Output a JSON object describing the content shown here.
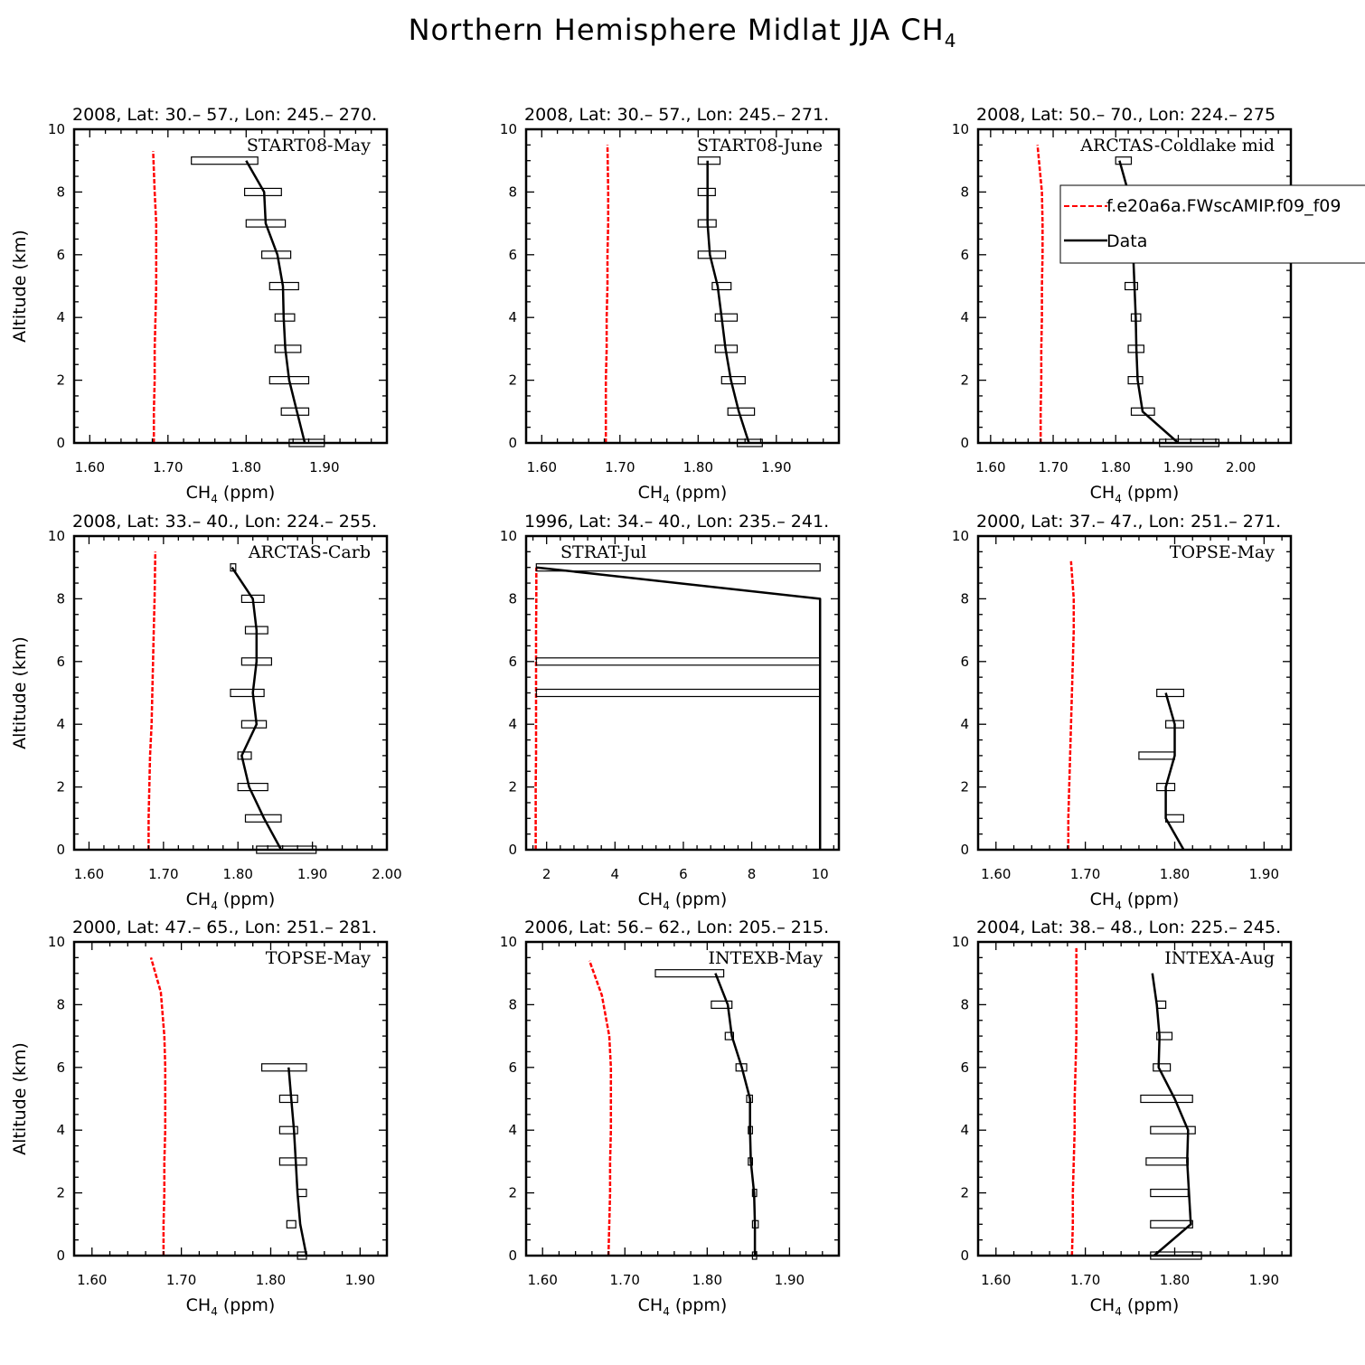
{
  "figure": {
    "title_main": "Northern Hemisphere Midlat JJA CH",
    "title_sub": "4"
  },
  "legend": {
    "model": "f.e20a6a.FWscAMIP.f09_f09",
    "data": "Data"
  },
  "colors": {
    "model": "#ff0000",
    "data": "#000000"
  },
  "chart_data": [
    {
      "type": "line",
      "title": "2008, Lat:  30.– 57., Lon: 245.– 270.",
      "annotation": "START08-May",
      "xlabel": "CH4 (ppm)",
      "ylabel": "Altitude (km)",
      "xlim": [
        1.58,
        1.98
      ],
      "ylim": [
        0,
        10
      ],
      "xticks": [
        1.6,
        1.7,
        1.8,
        1.9
      ],
      "xticklabels": [
        "1.60",
        "1.70",
        "1.80",
        "1.90"
      ],
      "yticks": [
        0,
        2,
        4,
        6,
        8,
        10
      ],
      "yticklabels": [
        "0",
        "2",
        "4",
        "6",
        "8",
        "10"
      ],
      "model": {
        "x": [
          1.682,
          1.682,
          1.683,
          1.683,
          1.684,
          1.685,
          1.685,
          1.685,
          1.683,
          1.681
        ],
        "y": [
          0,
          1,
          2,
          3,
          4,
          5,
          6,
          7,
          8,
          9.3
        ]
      },
      "data": {
        "x": [
          1.875,
          1.865,
          1.855,
          1.85,
          1.848,
          1.847,
          1.84,
          1.825,
          1.823,
          1.8
        ],
        "y": [
          0,
          1,
          2,
          3,
          4,
          5,
          6,
          7,
          8,
          9
        ]
      },
      "boxes": [
        {
          "y": 0,
          "lo": 1.855,
          "hi": 1.9
        },
        {
          "y": 1,
          "lo": 1.845,
          "hi": 1.88
        },
        {
          "y": 2,
          "lo": 1.83,
          "hi": 1.88
        },
        {
          "y": 3,
          "lo": 1.837,
          "hi": 1.87
        },
        {
          "y": 4,
          "lo": 1.837,
          "hi": 1.862
        },
        {
          "y": 5,
          "lo": 1.83,
          "hi": 1.867
        },
        {
          "y": 6,
          "lo": 1.82,
          "hi": 1.857
        },
        {
          "y": 7,
          "lo": 1.8,
          "hi": 1.85
        },
        {
          "y": 8,
          "lo": 1.798,
          "hi": 1.845
        },
        {
          "y": 9,
          "lo": 1.73,
          "hi": 1.815
        }
      ]
    },
    {
      "type": "line",
      "title": "2008, Lat:  30.– 57., Lon: 245.– 271.",
      "annotation": "START08-June",
      "xlabel": "CH4 (ppm)",
      "ylabel": "",
      "xlim": [
        1.58,
        1.98
      ],
      "ylim": [
        0,
        10
      ],
      "xticks": [
        1.6,
        1.7,
        1.8,
        1.9
      ],
      "xticklabels": [
        "1.60",
        "1.70",
        "1.80",
        "1.90"
      ],
      "yticks": [
        0,
        2,
        4,
        6,
        8,
        10
      ],
      "yticklabels": [
        "0",
        "2",
        "4",
        "6",
        "8",
        "10"
      ],
      "model": {
        "x": [
          1.682,
          1.682,
          1.682,
          1.683,
          1.683,
          1.684,
          1.684,
          1.685,
          1.685,
          1.684
        ],
        "y": [
          0,
          1,
          2,
          3,
          4,
          5,
          6,
          7,
          8,
          9.5
        ]
      },
      "data": {
        "x": [
          1.865,
          1.852,
          1.842,
          1.835,
          1.83,
          1.825,
          1.815,
          1.812,
          1.812,
          1.812
        ],
        "y": [
          0,
          1,
          2,
          3,
          4,
          5,
          6,
          7,
          8,
          9
        ]
      },
      "boxes": [
        {
          "y": 0,
          "lo": 1.85,
          "hi": 1.882
        },
        {
          "y": 1,
          "lo": 1.838,
          "hi": 1.872
        },
        {
          "y": 2,
          "lo": 1.83,
          "hi": 1.86
        },
        {
          "y": 3,
          "lo": 1.822,
          "hi": 1.85
        },
        {
          "y": 4,
          "lo": 1.822,
          "hi": 1.85
        },
        {
          "y": 5,
          "lo": 1.818,
          "hi": 1.842
        },
        {
          "y": 6,
          "lo": 1.8,
          "hi": 1.835
        },
        {
          "y": 7,
          "lo": 1.8,
          "hi": 1.823
        },
        {
          "y": 8,
          "lo": 1.8,
          "hi": 1.822
        },
        {
          "y": 9,
          "lo": 1.8,
          "hi": 1.828
        }
      ]
    },
    {
      "type": "line",
      "title": "2008, Lat:  50.– 70., Lon: 224.– 275",
      "annotation": "ARCTAS-Coldlake mid",
      "xlabel": "CH4 (ppm)",
      "ylabel": "",
      "xlim": [
        1.58,
        2.08
      ],
      "ylim": [
        0,
        10
      ],
      "xticks": [
        1.6,
        1.7,
        1.8,
        1.9,
        2.0
      ],
      "xticklabels": [
        "1.60",
        "1.70",
        "1.80",
        "1.90",
        "2.00"
      ],
      "yticks": [
        0,
        2,
        4,
        6,
        8,
        10
      ],
      "yticklabels": [
        "0",
        "2",
        "4",
        "6",
        "8",
        "10"
      ],
      "model": {
        "x": [
          1.68,
          1.68,
          1.681,
          1.681,
          1.682,
          1.682,
          1.683,
          1.683,
          1.682,
          1.675
        ],
        "y": [
          0,
          1,
          2,
          3,
          4,
          5,
          6,
          7,
          8,
          9.5
        ]
      },
      "data": {
        "x": [
          1.9,
          1.843,
          1.835,
          1.833,
          1.832,
          1.83,
          1.828,
          1.825,
          1.82,
          1.806
        ],
        "y": [
          0,
          1,
          2,
          3,
          4,
          5,
          6,
          7,
          8,
          9
        ]
      },
      "boxes": [
        {
          "y": 0,
          "lo": 1.87,
          "hi": 1.965
        },
        {
          "y": 1,
          "lo": 1.825,
          "hi": 1.862
        },
        {
          "y": 2,
          "lo": 1.82,
          "hi": 1.843
        },
        {
          "y": 3,
          "lo": 1.82,
          "hi": 1.845
        },
        {
          "y": 4,
          "lo": 1.825,
          "hi": 1.84
        },
        {
          "y": 5,
          "lo": 1.815,
          "hi": 1.835
        },
        {
          "y": 6,
          "lo": 1.815,
          "hi": 1.84
        },
        {
          "y": 7,
          "lo": 1.82,
          "hi": 1.84
        },
        {
          "y": 8,
          "lo": 1.8,
          "hi": 1.83
        },
        {
          "y": 9,
          "lo": 1.8,
          "hi": 1.825
        }
      ]
    },
    {
      "type": "line",
      "title": "2008, Lat:  33.– 40., Lon: 224.– 255.",
      "annotation": "ARCTAS-Carb",
      "xlabel": "CH4 (ppm)",
      "ylabel": "Altitude (km)",
      "xlim": [
        1.58,
        2.0
      ],
      "ylim": [
        0,
        10
      ],
      "xticks": [
        1.6,
        1.7,
        1.8,
        1.9,
        2.0
      ],
      "xticklabels": [
        "1.60",
        "1.70",
        "1.80",
        "1.90",
        "2.00"
      ],
      "yticks": [
        0,
        2,
        4,
        6,
        8,
        10
      ],
      "yticklabels": [
        "0",
        "2",
        "4",
        "6",
        "8",
        "10"
      ],
      "model": {
        "x": [
          1.68,
          1.68,
          1.681,
          1.682,
          1.684,
          1.685,
          1.686,
          1.687,
          1.688,
          1.689
        ],
        "y": [
          0,
          1,
          2,
          3,
          4,
          5,
          6,
          7,
          8,
          9.5
        ]
      },
      "data": {
        "x": [
          1.858,
          1.835,
          1.815,
          1.805,
          1.825,
          1.82,
          1.825,
          1.825,
          1.82,
          1.792
        ],
        "y": [
          0,
          1,
          2,
          3,
          4,
          5,
          6,
          7,
          8,
          9
        ]
      },
      "boxes": [
        {
          "y": 0,
          "lo": 1.825,
          "hi": 1.905
        },
        {
          "y": 1,
          "lo": 1.81,
          "hi": 1.858
        },
        {
          "y": 2,
          "lo": 1.8,
          "hi": 1.84
        },
        {
          "y": 3,
          "lo": 1.8,
          "hi": 1.818
        },
        {
          "y": 4,
          "lo": 1.805,
          "hi": 1.838
        },
        {
          "y": 5,
          "lo": 1.79,
          "hi": 1.835
        },
        {
          "y": 6,
          "lo": 1.805,
          "hi": 1.845
        },
        {
          "y": 7,
          "lo": 1.81,
          "hi": 1.84
        },
        {
          "y": 8,
          "lo": 1.805,
          "hi": 1.835
        },
        {
          "y": 9,
          "lo": 1.79,
          "hi": 1.797
        }
      ]
    },
    {
      "type": "line",
      "title": "1996, Lat: 34.– 40., Lon: 235.– 241.",
      "annotation": "STRAT-Jul",
      "xlabel": "CH4 (ppm)",
      "ylabel": "",
      "xlim": [
        1.4,
        10.55
      ],
      "ylim": [
        0,
        10
      ],
      "xticks": [
        2,
        4,
        6,
        8,
        10
      ],
      "xticklabels": [
        "2",
        "4",
        "6",
        "8",
        "10"
      ],
      "yticks": [
        0,
        2,
        4,
        6,
        8,
        10
      ],
      "yticklabels": [
        "0",
        "2",
        "4",
        "6",
        "8",
        "10"
      ],
      "model": {
        "x": [
          1.68,
          1.68,
          1.68,
          1.69,
          1.69,
          1.69,
          1.69,
          1.69,
          1.7,
          1.7
        ],
        "y": [
          0,
          1,
          2,
          3,
          4,
          5,
          6,
          7,
          8,
          9
        ]
      },
      "data": {
        "x": [
          10,
          10,
          10,
          10,
          1.7
        ],
        "y": [
          0,
          5,
          6,
          8,
          9
        ]
      },
      "boxes": [
        {
          "y": 5,
          "lo": 1.7,
          "hi": 10
        },
        {
          "y": 6,
          "lo": 1.7,
          "hi": 10
        },
        {
          "y": 9,
          "lo": 1.7,
          "hi": 10
        }
      ]
    },
    {
      "type": "line",
      "title": "2000, Lat: 37.– 47., Lon: 251.– 271.",
      "annotation": "TOPSE-May",
      "xlabel": "CH4 (ppm)",
      "ylabel": "",
      "xlim": [
        1.58,
        1.93
      ],
      "ylim": [
        0,
        10
      ],
      "xticks": [
        1.6,
        1.7,
        1.8,
        1.9
      ],
      "xticklabels": [
        "1.60",
        "1.70",
        "1.80",
        "1.90"
      ],
      "yticks": [
        0,
        2,
        4,
        6,
        8,
        10
      ],
      "yticklabels": [
        "0",
        "2",
        "4",
        "6",
        "8",
        "10"
      ],
      "model": {
        "x": [
          1.681,
          1.681,
          1.682,
          1.683,
          1.684,
          1.685,
          1.686,
          1.687,
          1.687,
          1.684
        ],
        "y": [
          0,
          1,
          2,
          3,
          4,
          5,
          6,
          7,
          8,
          9.2
        ]
      },
      "data": {
        "x": [
          1.81,
          1.79,
          1.79,
          1.8,
          1.8,
          1.79
        ],
        "y": [
          0,
          1,
          2,
          3,
          4,
          5
        ]
      },
      "boxes": [
        {
          "y": 1,
          "lo": 1.79,
          "hi": 1.81
        },
        {
          "y": 2,
          "lo": 1.78,
          "hi": 1.8
        },
        {
          "y": 3,
          "lo": 1.76,
          "hi": 1.8
        },
        {
          "y": 4,
          "lo": 1.79,
          "hi": 1.81
        },
        {
          "y": 5,
          "lo": 1.78,
          "hi": 1.81
        }
      ]
    },
    {
      "type": "line",
      "title": "2000, Lat: 47.– 65., Lon: 251.– 281.",
      "annotation": "TOPSE-May",
      "xlabel": "CH4 (ppm)",
      "ylabel": "Altitude (km)",
      "xlim": [
        1.58,
        1.93
      ],
      "ylim": [
        0,
        10
      ],
      "xticks": [
        1.6,
        1.7,
        1.8,
        1.9
      ],
      "xticklabels": [
        "1.60",
        "1.70",
        "1.80",
        "1.90"
      ],
      "yticks": [
        0,
        2,
        4,
        6,
        8,
        10
      ],
      "yticklabels": [
        "0",
        "2",
        "4",
        "6",
        "8",
        "10"
      ],
      "model": {
        "x": [
          1.68,
          1.68,
          1.681,
          1.681,
          1.682,
          1.682,
          1.682,
          1.681,
          1.677,
          1.666
        ],
        "y": [
          0,
          1,
          2,
          3,
          4,
          5,
          6,
          7,
          8.4,
          9.5
        ]
      },
      "data": {
        "x": [
          1.84,
          1.833,
          1.83,
          1.828,
          1.826,
          1.823,
          1.82
        ],
        "y": [
          0,
          1,
          2,
          3,
          4,
          5,
          6
        ]
      },
      "boxes": [
        {
          "y": 0,
          "lo": 1.83,
          "hi": 1.84
        },
        {
          "y": 1,
          "lo": 1.818,
          "hi": 1.828
        },
        {
          "y": 2,
          "lo": 1.83,
          "hi": 1.84
        },
        {
          "y": 3,
          "lo": 1.81,
          "hi": 1.84
        },
        {
          "y": 4,
          "lo": 1.81,
          "hi": 1.83
        },
        {
          "y": 5,
          "lo": 1.81,
          "hi": 1.83
        },
        {
          "y": 6,
          "lo": 1.79,
          "hi": 1.84
        }
      ]
    },
    {
      "type": "line",
      "title": "2006, Lat: 56.– 62., Lon: 205.– 215.",
      "annotation": "INTEXB-May",
      "xlabel": "CH4 (ppm)",
      "ylabel": "",
      "xlim": [
        1.58,
        1.96
      ],
      "ylim": [
        0,
        10
      ],
      "xticks": [
        1.6,
        1.7,
        1.8,
        1.9
      ],
      "xticklabels": [
        "1.60",
        "1.70",
        "1.80",
        "1.90"
      ],
      "yticks": [
        0,
        2,
        4,
        6,
        8,
        10
      ],
      "yticklabels": [
        "0",
        "2",
        "4",
        "6",
        "8",
        "10"
      ],
      "model": {
        "x": [
          1.68,
          1.681,
          1.682,
          1.682,
          1.683,
          1.683,
          1.683,
          1.681,
          1.672,
          1.657
        ],
        "y": [
          0,
          1,
          2,
          3,
          4,
          5,
          6,
          7,
          8.3,
          9.4
        ]
      },
      "data": {
        "x": [
          1.858,
          1.858,
          1.857,
          1.853,
          1.852,
          1.852,
          1.842,
          1.83,
          1.825,
          1.81
        ],
        "y": [
          0,
          1,
          2,
          3,
          4,
          5,
          6,
          7,
          8,
          9
        ]
      },
      "boxes": [
        {
          "y": 0,
          "lo": 1.855,
          "hi": 1.86
        },
        {
          "y": 1,
          "lo": 1.855,
          "hi": 1.862
        },
        {
          "y": 2,
          "lo": 1.855,
          "hi": 1.86
        },
        {
          "y": 3,
          "lo": 1.85,
          "hi": 1.855
        },
        {
          "y": 4,
          "lo": 1.85,
          "hi": 1.855
        },
        {
          "y": 5,
          "lo": 1.848,
          "hi": 1.855
        },
        {
          "y": 6,
          "lo": 1.835,
          "hi": 1.848
        },
        {
          "y": 7,
          "lo": 1.822,
          "hi": 1.832
        },
        {
          "y": 8,
          "lo": 1.805,
          "hi": 1.83
        },
        {
          "y": 9,
          "lo": 1.737,
          "hi": 1.82
        }
      ]
    },
    {
      "type": "line",
      "title": "2004, Lat: 38.– 48., Lon: 225.– 245.",
      "annotation": "INTEXA-Aug",
      "xlabel": "CH4 (ppm)",
      "ylabel": "",
      "xlim": [
        1.58,
        1.93
      ],
      "ylim": [
        0,
        10
      ],
      "xticks": [
        1.6,
        1.7,
        1.8,
        1.9
      ],
      "xticklabels": [
        "1.60",
        "1.70",
        "1.80",
        "1.90"
      ],
      "yticks": [
        0,
        2,
        4,
        6,
        8,
        10
      ],
      "yticklabels": [
        "0",
        "2",
        "4",
        "6",
        "8",
        "10"
      ],
      "model": {
        "x": [
          1.685,
          1.686,
          1.686,
          1.687,
          1.688,
          1.688,
          1.689,
          1.69,
          1.69,
          1.69
        ],
        "y": [
          0,
          1,
          2,
          3,
          4,
          5,
          6,
          7,
          8,
          9.8
        ]
      },
      "data": {
        "x": [
          1.777,
          1.818,
          1.816,
          1.814,
          1.815,
          1.8,
          1.782,
          1.783,
          1.78,
          1.775
        ],
        "y": [
          0,
          1,
          2,
          3,
          4,
          5,
          6,
          7,
          8,
          9
        ]
      },
      "boxes": [
        {
          "y": 0,
          "lo": 1.773,
          "hi": 1.83
        },
        {
          "y": 1,
          "lo": 1.773,
          "hi": 1.82
        },
        {
          "y": 2,
          "lo": 1.773,
          "hi": 1.815
        },
        {
          "y": 3,
          "lo": 1.768,
          "hi": 1.815
        },
        {
          "y": 4,
          "lo": 1.773,
          "hi": 1.823
        },
        {
          "y": 5,
          "lo": 1.762,
          "hi": 1.82
        },
        {
          "y": 6,
          "lo": 1.776,
          "hi": 1.795
        },
        {
          "y": 7,
          "lo": 1.78,
          "hi": 1.797
        },
        {
          "y": 8,
          "lo": 1.78,
          "hi": 1.79
        }
      ]
    }
  ]
}
